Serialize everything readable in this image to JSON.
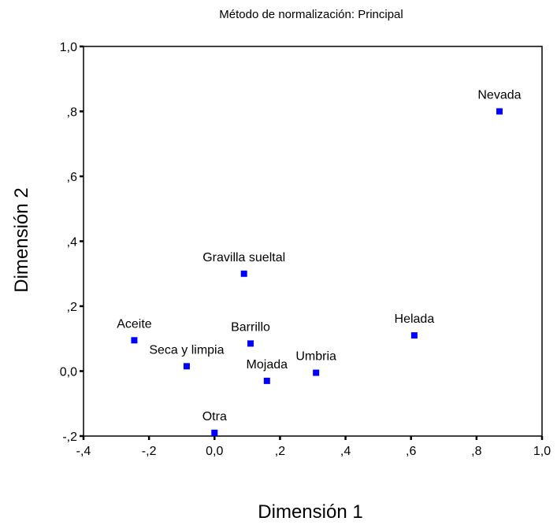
{
  "chart_data": {
    "type": "scatter",
    "subtitle": "Método de normalización:  Principal",
    "xlabel": "Dimensión 1",
    "ylabel": "Dimensión 2",
    "xlim": [
      -0.4,
      1.0
    ],
    "ylim": [
      -0.2,
      1.0
    ],
    "x_ticks": [
      {
        "value": -0.4,
        "label": "-,4"
      },
      {
        "value": -0.2,
        "label": "-,2"
      },
      {
        "value": 0.0,
        "label": "0,0"
      },
      {
        "value": 0.2,
        "label": ",2"
      },
      {
        "value": 0.4,
        "label": ",4"
      },
      {
        "value": 0.6,
        "label": ",6"
      },
      {
        "value": 0.8,
        "label": ",8"
      },
      {
        "value": 1.0,
        "label": "1,0"
      }
    ],
    "y_ticks": [
      {
        "value": -0.2,
        "label": "-,2"
      },
      {
        "value": 0.0,
        "label": "0,0"
      },
      {
        "value": 0.2,
        "label": ",2"
      },
      {
        "value": 0.4,
        "label": ",4"
      },
      {
        "value": 0.6,
        "label": ",6"
      },
      {
        "value": 0.8,
        "label": ",8"
      },
      {
        "value": 1.0,
        "label": "1,0"
      }
    ],
    "grid": false,
    "marker_color": "#0000ff",
    "points": [
      {
        "label": "Nevada",
        "x": 0.87,
        "y": 0.8
      },
      {
        "label": "Gravilla sueltal",
        "x": 0.09,
        "y": 0.3
      },
      {
        "label": "Helada",
        "x": 0.61,
        "y": 0.11
      },
      {
        "label": "Aceite",
        "x": -0.245,
        "y": 0.095
      },
      {
        "label": "Barrillo",
        "x": 0.11,
        "y": 0.085
      },
      {
        "label": "Seca y limpia",
        "x": -0.085,
        "y": 0.015
      },
      {
        "label": "Umbria",
        "x": 0.31,
        "y": -0.005
      },
      {
        "label": "Mojada",
        "x": 0.16,
        "y": -0.03
      },
      {
        "label": "Otra",
        "x": 0.0,
        "y": -0.19
      }
    ]
  }
}
